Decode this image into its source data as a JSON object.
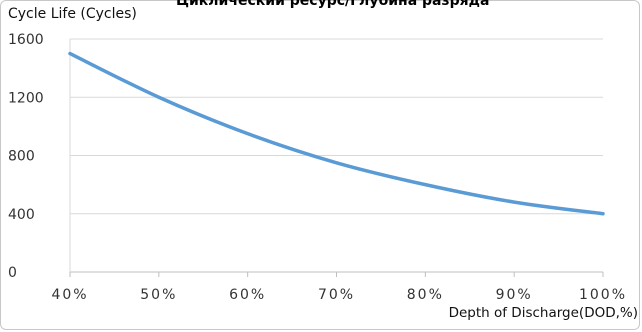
{
  "chart_data": {
    "type": "line",
    "title": "Циклический ресурс/Глубина разряда",
    "ylabel": "Cycle Life (Cycles)",
    "xlabel": "Depth of Discharge(DOD,%)",
    "categories": [
      "40%",
      "50%",
      "60%",
      "70%",
      "80%",
      "90%",
      "100%"
    ],
    "x": [
      40,
      50,
      60,
      70,
      80,
      90,
      100
    ],
    "series": [
      {
        "values": [
          1500,
          1200,
          950,
          750,
          600,
          480,
          400
        ],
        "color": "#5b9bd5"
      }
    ],
    "ylim": [
      0,
      1600
    ],
    "yticks": [
      "0",
      "400",
      "800",
      "1200",
      "1600"
    ],
    "grid": true,
    "legend": "none"
  }
}
